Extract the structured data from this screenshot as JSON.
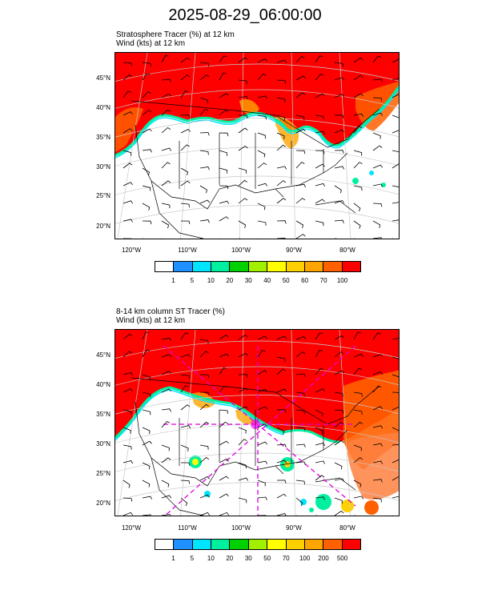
{
  "title": "2025-08-29_06:00:00",
  "panels": [
    {
      "label_line1": "Stratosphere Tracer   (%)     at   12 km",
      "label_line2": "Wind   (kts)     at   12 km",
      "colorbar": {
        "colors": [
          "#ffffff",
          "#1e90ff",
          "#00e5ff",
          "#00f0a0",
          "#00d000",
          "#a0f000",
          "#ffff00",
          "#ffd000",
          "#ffa500",
          "#ff6000",
          "#ff0000"
        ],
        "labels": [
          "1",
          "5",
          "10",
          "20",
          "30",
          "40",
          "50",
          "60",
          "70",
          "100"
        ]
      }
    },
    {
      "label_line1": "8-14 km column ST Tracer   (%)",
      "label_line2": "Wind   (kts)     at   12 km",
      "colorbar": {
        "colors": [
          "#ffffff",
          "#1e90ff",
          "#00e5ff",
          "#00f0a0",
          "#00d000",
          "#a0f000",
          "#ffff00",
          "#ffd000",
          "#ffa500",
          "#ff6000",
          "#ff0000"
        ],
        "labels": [
          "1",
          "5",
          "10",
          "20",
          "30",
          "50",
          "70",
          "100",
          "200",
          "500"
        ]
      }
    }
  ],
  "axes": {
    "lat_labels": [
      "45°N",
      "40°N",
      "35°N",
      "30°N",
      "25°N",
      "20°N"
    ],
    "lon_labels": [
      "120°W",
      "110°W",
      "100°W",
      "90°W",
      "80°W"
    ]
  },
  "colors": {
    "high": "#ff0000",
    "mid": "#ff6000",
    "low": "#ffa500",
    "edge": "#00f0a0",
    "boundary": "#000000",
    "grid": "#c8c8c8",
    "trajectory": "#e000e0"
  }
}
